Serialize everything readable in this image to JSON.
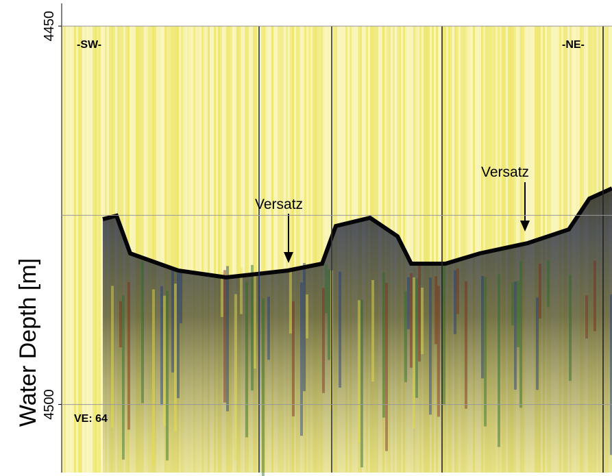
{
  "chart_data": {
    "type": "seismic-profile",
    "ylabel": "Water Depth [m]",
    "ylim": [
      4447,
      4509
    ],
    "yticks": [
      4450,
      4500
    ],
    "gridlines": [
      4450,
      4475,
      4500
    ],
    "annotations": [
      "-SW-",
      "-NE-",
      "VE: 64",
      "Versatz",
      "Versatz"
    ]
  }
}
